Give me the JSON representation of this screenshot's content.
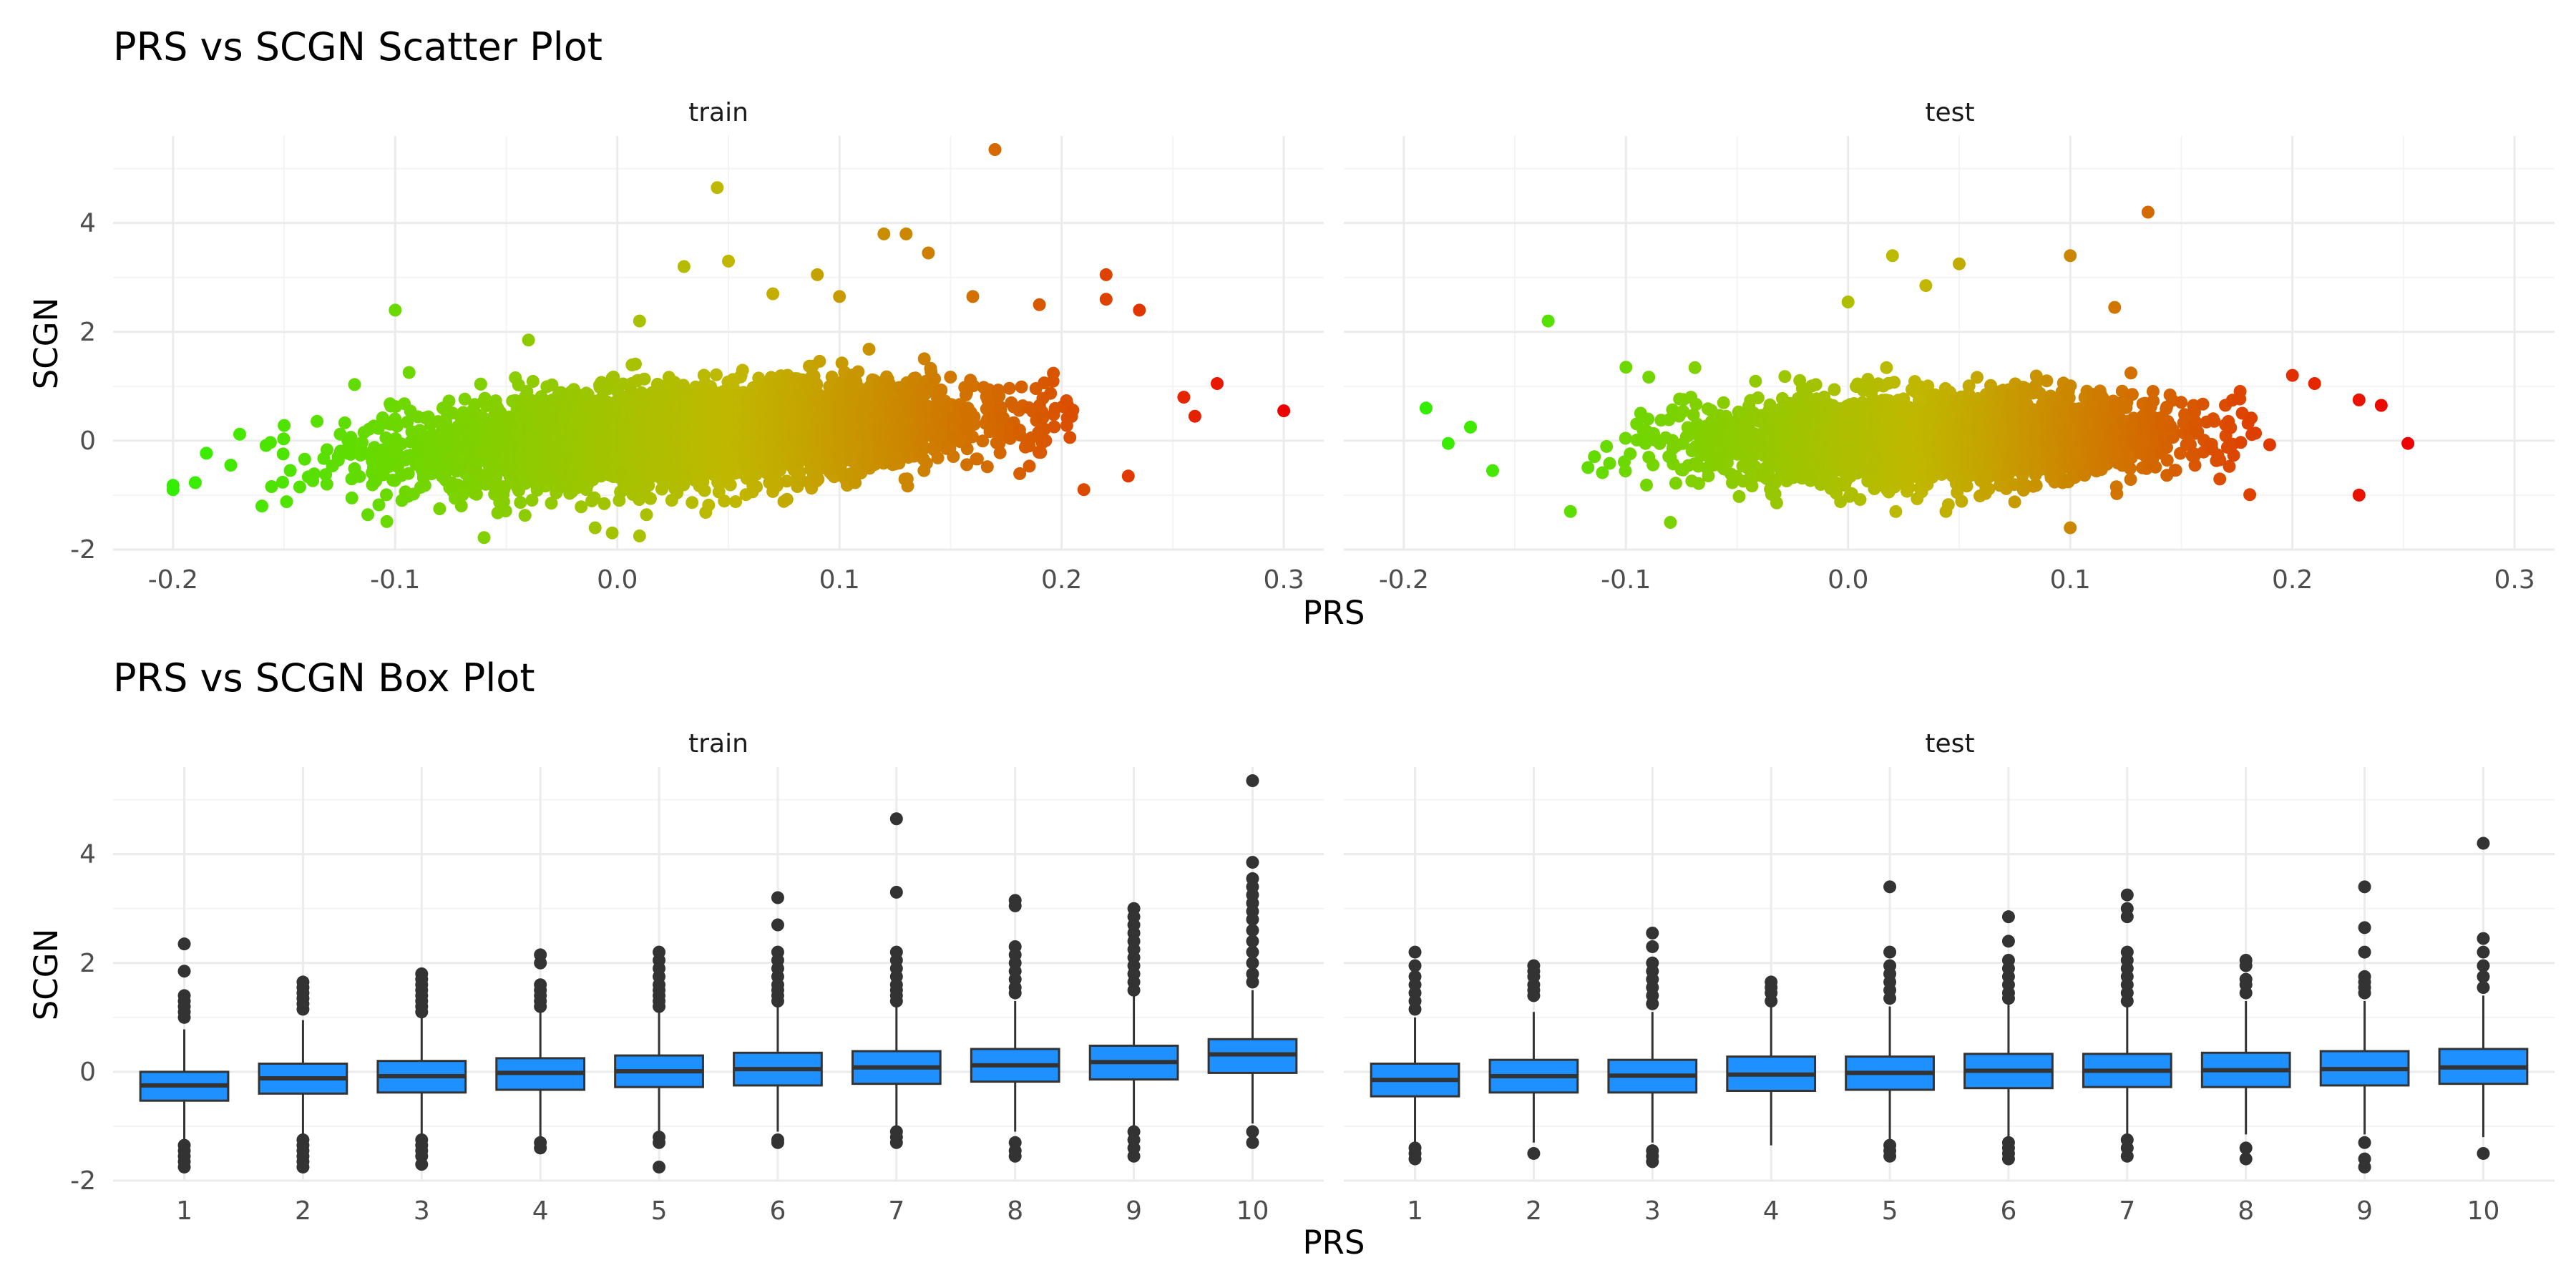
{
  "chart_data": [
    {
      "type": "scatter",
      "title": "PRS vs SCGN Scatter Plot",
      "xlabel": "PRS",
      "ylabel": "SCGN",
      "facets": [
        "train",
        "test"
      ],
      "xlim": [
        -0.227,
        0.318
      ],
      "ylim": [
        -2.0,
        5.6
      ],
      "xticks": [
        -0.2,
        -0.1,
        0.0,
        0.1,
        0.2,
        0.3
      ],
      "xtick_labels": [
        "-0.2",
        "-0.1",
        "0.0",
        "0.1",
        "0.2",
        "0.3"
      ],
      "yticks": [
        -2,
        0,
        2,
        4
      ],
      "ytick_labels": [
        "-2",
        "0",
        "2",
        "4"
      ],
      "grid": true,
      "legend": "none",
      "color_scale": {
        "low": "#33ee00",
        "mid": "#c0b800",
        "high": "#ee0000"
      },
      "series": [
        {
          "facet": "train",
          "n_points_approx": 9000,
          "x_range": [
            -0.2,
            0.3
          ],
          "points": [
            [
              -0.2,
              -0.9
            ],
            [
              -0.2,
              -0.82
            ],
            [
              -0.19,
              -0.77
            ],
            [
              -0.185,
              -0.23
            ],
            [
              -0.174,
              -0.45
            ],
            [
              -0.17,
              0.12
            ],
            [
              -0.16,
              -1.2
            ],
            [
              -0.15,
              0.28
            ],
            [
              -0.1,
              2.4
            ],
            [
              -0.08,
              -1.25
            ],
            [
              -0.06,
              -1.78
            ],
            [
              -0.04,
              1.85
            ],
            [
              -0.01,
              -1.6
            ],
            [
              0.01,
              -1.75
            ],
            [
              0.01,
              2.2
            ],
            [
              0.03,
              3.2
            ],
            [
              0.045,
              4.65
            ],
            [
              0.05,
              3.3
            ],
            [
              0.07,
              2.7
            ],
            [
              0.09,
              3.05
            ],
            [
              0.1,
              2.65
            ],
            [
              0.12,
              3.8
            ],
            [
              0.13,
              3.8
            ],
            [
              0.14,
              3.45
            ],
            [
              0.17,
              5.35
            ],
            [
              0.16,
              2.65
            ],
            [
              0.19,
              2.5
            ],
            [
              0.22,
              3.05
            ],
            [
              0.22,
              2.6
            ],
            [
              0.235,
              2.4
            ],
            [
              0.21,
              -0.9
            ],
            [
              0.23,
              -0.65
            ],
            [
              0.255,
              0.8
            ],
            [
              0.26,
              0.45
            ],
            [
              0.27,
              1.05
            ],
            [
              0.3,
              0.55
            ]
          ]
        },
        {
          "facet": "test",
          "n_points_approx": 6000,
          "x_range": [
            -0.19,
            0.25
          ],
          "points": [
            [
              -0.19,
              0.6
            ],
            [
              -0.18,
              -0.05
            ],
            [
              -0.17,
              0.25
            ],
            [
              -0.16,
              -0.55
            ],
            [
              -0.135,
              2.2
            ],
            [
              -0.125,
              -1.3
            ],
            [
              -0.1,
              1.35
            ],
            [
              -0.08,
              -1.5
            ],
            [
              0.0,
              2.55
            ],
            [
              0.02,
              3.4
            ],
            [
              0.035,
              2.85
            ],
            [
              0.05,
              3.25
            ],
            [
              0.1,
              3.4
            ],
            [
              0.12,
              2.45
            ],
            [
              0.1,
              -1.6
            ],
            [
              0.135,
              4.2
            ],
            [
              0.2,
              1.2
            ],
            [
              0.21,
              1.05
            ],
            [
              0.23,
              0.75
            ],
            [
              0.24,
              0.65
            ],
            [
              0.23,
              -1.0
            ],
            [
              0.252,
              -0.05
            ]
          ]
        }
      ]
    },
    {
      "type": "box",
      "title": "PRS vs SCGN Box Plot",
      "xlabel": "PRS",
      "ylabel": "SCGN",
      "facets": [
        "train",
        "test"
      ],
      "categories": [
        "1",
        "2",
        "3",
        "4",
        "5",
        "6",
        "7",
        "8",
        "9",
        "10"
      ],
      "ylim": [
        -2.0,
        5.6
      ],
      "yticks": [
        -2,
        0,
        2,
        4
      ],
      "ytick_labels": [
        "-2",
        "0",
        "2",
        "4"
      ],
      "box_color": "#1e90ff",
      "grid": true,
      "series": [
        {
          "facet": "train",
          "boxes": [
            {
              "q1": -0.53,
              "median": -0.25,
              "q3": 0.0,
              "lower": -1.3,
              "upper": 0.78,
              "outliers": [
                2.35,
                1.85,
                1.4,
                1.3,
                1.2,
                1.1,
                1.0,
                -1.35,
                -1.45,
                -1.55,
                -1.65,
                -1.75
              ]
            },
            {
              "q1": -0.4,
              "median": -0.12,
              "q3": 0.15,
              "lower": -1.2,
              "upper": 0.95,
              "outliers": [
                1.65,
                1.55,
                1.45,
                1.35,
                1.25,
                1.15,
                -1.25,
                -1.35,
                -1.45,
                -1.55,
                -1.65,
                -1.75
              ]
            },
            {
              "q1": -0.38,
              "median": -0.08,
              "q3": 0.2,
              "lower": -1.2,
              "upper": 1.0,
              "outliers": [
                1.8,
                1.7,
                1.6,
                1.5,
                1.4,
                1.3,
                1.2,
                1.1,
                -1.25,
                -1.35,
                -1.45,
                -1.55,
                -1.7
              ]
            },
            {
              "q1": -0.33,
              "median": -0.02,
              "q3": 0.25,
              "lower": -1.2,
              "upper": 1.1,
              "outliers": [
                2.15,
                2.0,
                1.6,
                1.5,
                1.4,
                1.3,
                1.2,
                -1.3,
                -1.4
              ]
            },
            {
              "q1": -0.28,
              "median": 0.01,
              "q3": 0.3,
              "lower": -1.1,
              "upper": 1.1,
              "outliers": [
                2.2,
                2.05,
                1.9,
                1.75,
                1.6,
                1.5,
                1.4,
                1.3,
                1.2,
                -1.2,
                -1.3,
                -1.75
              ]
            },
            {
              "q1": -0.25,
              "median": 0.05,
              "q3": 0.35,
              "lower": -1.1,
              "upper": 1.2,
              "outliers": [
                3.2,
                2.7,
                2.2,
                2.05,
                1.9,
                1.75,
                1.6,
                1.5,
                1.4,
                1.3,
                -1.25,
                -1.3
              ]
            },
            {
              "q1": -0.22,
              "median": 0.08,
              "q3": 0.38,
              "lower": -1.0,
              "upper": 1.2,
              "outliers": [
                4.65,
                3.3,
                2.2,
                2.05,
                1.9,
                1.75,
                1.6,
                1.5,
                1.4,
                1.3,
                -1.1,
                -1.2,
                -1.3
              ]
            },
            {
              "q1": -0.18,
              "median": 0.12,
              "q3": 0.42,
              "lower": -1.1,
              "upper": 1.3,
              "outliers": [
                3.15,
                3.05,
                2.3,
                2.15,
                2.0,
                1.85,
                1.7,
                1.55,
                1.45,
                -1.3,
                -1.45,
                -1.55
              ]
            },
            {
              "q1": -0.14,
              "median": 0.18,
              "q3": 0.48,
              "lower": -1.0,
              "upper": 1.4,
              "outliers": [
                3.0,
                2.85,
                2.7,
                2.55,
                2.4,
                2.25,
                2.1,
                1.95,
                1.8,
                1.65,
                1.5,
                -1.1,
                -1.25,
                -1.4,
                -1.55
              ]
            },
            {
              "q1": -0.02,
              "median": 0.32,
              "q3": 0.6,
              "lower": -0.95,
              "upper": 1.5,
              "outliers": [
                5.35,
                3.85,
                3.55,
                3.4,
                3.25,
                3.1,
                2.95,
                2.8,
                2.6,
                2.4,
                2.2,
                2.0,
                1.8,
                1.65,
                -1.1,
                -1.3
              ]
            }
          ]
        },
        {
          "facet": "test",
          "boxes": [
            {
              "q1": -0.45,
              "median": -0.15,
              "q3": 0.15,
              "lower": -1.3,
              "upper": 1.0,
              "outliers": [
                2.2,
                1.95,
                1.75,
                1.6,
                1.45,
                1.3,
                1.15,
                -1.4,
                -1.5,
                -1.6
              ]
            },
            {
              "q1": -0.38,
              "median": -0.08,
              "q3": 0.22,
              "lower": -1.3,
              "upper": 1.1,
              "outliers": [
                1.95,
                1.85,
                1.75,
                1.6,
                1.5,
                1.4,
                -1.5
              ]
            },
            {
              "q1": -0.38,
              "median": -0.07,
              "q3": 0.22,
              "lower": -1.3,
              "upper": 1.1,
              "outliers": [
                2.55,
                2.3,
                2.0,
                1.85,
                1.7,
                1.55,
                1.4,
                1.25,
                -1.45,
                -1.55,
                -1.65
              ]
            },
            {
              "q1": -0.35,
              "median": -0.05,
              "q3": 0.28,
              "lower": -1.35,
              "upper": 1.2,
              "outliers": [
                1.65,
                1.55,
                1.45,
                1.3
              ]
            },
            {
              "q1": -0.33,
              "median": -0.02,
              "q3": 0.28,
              "lower": -1.25,
              "upper": 1.2,
              "outliers": [
                3.4,
                2.2,
                1.95,
                1.8,
                1.65,
                1.5,
                1.35,
                -1.35,
                -1.45,
                -1.55
              ]
            },
            {
              "q1": -0.3,
              "median": 0.02,
              "q3": 0.33,
              "lower": -1.2,
              "upper": 1.3,
              "outliers": [
                2.85,
                2.4,
                2.05,
                1.9,
                1.75,
                1.6,
                1.45,
                1.35,
                -1.3,
                -1.4,
                -1.5,
                -1.6
              ]
            },
            {
              "q1": -0.28,
              "median": 0.02,
              "q3": 0.33,
              "lower": -1.2,
              "upper": 1.2,
              "outliers": [
                3.25,
                3.0,
                2.85,
                2.2,
                2.05,
                1.9,
                1.75,
                1.6,
                1.45,
                1.3,
                -1.25,
                -1.4,
                -1.55
              ]
            },
            {
              "q1": -0.28,
              "median": 0.03,
              "q3": 0.35,
              "lower": -1.15,
              "upper": 1.3,
              "outliers": [
                2.05,
                1.95,
                1.7,
                1.6,
                1.45,
                -1.4,
                -1.6
              ]
            },
            {
              "q1": -0.25,
              "median": 0.05,
              "q3": 0.38,
              "lower": -1.15,
              "upper": 1.3,
              "outliers": [
                3.4,
                2.65,
                2.2,
                1.75,
                1.65,
                1.55,
                1.45,
                -1.3,
                -1.6,
                -1.75
              ]
            },
            {
              "q1": -0.22,
              "median": 0.08,
              "q3": 0.42,
              "lower": -1.2,
              "upper": 1.4,
              "outliers": [
                4.2,
                2.45,
                2.2,
                1.95,
                1.75,
                1.55,
                -1.5
              ]
            }
          ]
        }
      ]
    }
  ]
}
